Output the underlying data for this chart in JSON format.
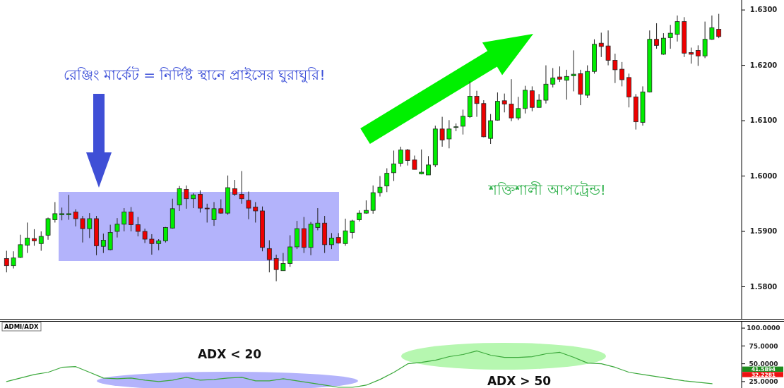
{
  "chart_data": [
    {
      "type": "candlestick",
      "categories": [
        null,
        null,
        null,
        null,
        null,
        null,
        null,
        null,
        null,
        null,
        null,
        null,
        null,
        null,
        null,
        null,
        null,
        null,
        null,
        null,
        null,
        null,
        null,
        null,
        null,
        null,
        null,
        null,
        null,
        null,
        null,
        null,
        null,
        null,
        null,
        null,
        null,
        null,
        null,
        null,
        null,
        null,
        null,
        null,
        null,
        null,
        null,
        null,
        null,
        null,
        null,
        null,
        null,
        null,
        null,
        null,
        null,
        null,
        null,
        null,
        null,
        null,
        null,
        null,
        null,
        null,
        null,
        null,
        null,
        null,
        null,
        null,
        null,
        null,
        null,
        null,
        null,
        null,
        null,
        null,
        null,
        null,
        null,
        null,
        null,
        null,
        null,
        null,
        null,
        null,
        null,
        null,
        null,
        null,
        null,
        null,
        null,
        null,
        null,
        null,
        null,
        null,
        null,
        null
      ],
      "ohlc": [
        [
          1.5851,
          1.5865,
          1.5826,
          1.5838
        ],
        [
          1.5838,
          1.5864,
          1.5833,
          1.5852
        ],
        [
          1.5853,
          1.5894,
          1.5852,
          1.5876
        ],
        [
          1.5875,
          1.5916,
          1.5861,
          1.5888
        ],
        [
          1.5887,
          1.5904,
          1.5874,
          1.5883
        ],
        [
          1.5878,
          1.59,
          1.5865,
          1.5891
        ],
        [
          1.5893,
          1.5925,
          1.5885,
          1.5923
        ],
        [
          1.5921,
          1.5953,
          1.5916,
          1.5932
        ],
        [
          1.593,
          1.5943,
          1.592,
          1.5932
        ],
        [
          1.593,
          1.5966,
          1.5921,
          1.5932
        ],
        [
          1.5935,
          1.594,
          1.5909,
          1.5923
        ],
        [
          1.5923,
          1.5928,
          1.588,
          1.5905
        ],
        [
          1.5905,
          1.5933,
          1.5888,
          1.5923
        ],
        [
          1.5923,
          1.5928,
          1.5857,
          1.5874
        ],
        [
          1.5873,
          1.5896,
          1.5861,
          1.5884
        ],
        [
          1.5867,
          1.5912,
          1.5866,
          1.5898
        ],
        [
          1.59,
          1.5924,
          1.5889,
          1.5913
        ],
        [
          1.5913,
          1.5942,
          1.59,
          1.5935
        ],
        [
          1.5935,
          1.5944,
          1.59,
          1.5912
        ],
        [
          1.5912,
          1.5926,
          1.5891,
          1.59
        ],
        [
          1.59,
          1.5905,
          1.5879,
          1.5886
        ],
        [
          1.5886,
          1.5895,
          1.5858,
          1.5878
        ],
        [
          1.5878,
          1.5886,
          1.5866,
          1.5883
        ],
        [
          1.5883,
          1.5908,
          1.588,
          1.5907
        ],
        [
          1.5906,
          1.5959,
          1.5905,
          1.5941
        ],
        [
          1.5948,
          1.5982,
          1.5937,
          1.5977
        ],
        [
          1.5976,
          1.5983,
          1.5941,
          1.5959
        ],
        [
          1.5959,
          1.5969,
          1.5942,
          1.5966
        ],
        [
          1.5967,
          1.5974,
          1.5934,
          1.5942
        ],
        [
          1.5942,
          1.595,
          1.5916,
          1.5941
        ],
        [
          1.5921,
          1.5953,
          1.591,
          1.5941
        ],
        [
          1.5941,
          1.5958,
          1.5932,
          1.5933
        ],
        [
          1.5933,
          1.6001,
          1.593,
          1.5979
        ],
        [
          1.5977,
          1.5993,
          1.5964,
          1.5967
        ],
        [
          1.5967,
          1.6009,
          1.595,
          1.5959
        ],
        [
          1.5956,
          1.5972,
          1.5922,
          1.5942
        ],
        [
          1.5944,
          1.5953,
          1.5916,
          1.5937
        ],
        [
          1.5937,
          1.5945,
          1.5864,
          1.5871
        ],
        [
          1.5869,
          1.5884,
          1.5826,
          1.5849
        ],
        [
          1.5851,
          1.5858,
          1.581,
          1.5831
        ],
        [
          1.5829,
          1.5861,
          1.5829,
          1.5842
        ],
        [
          1.5842,
          1.5893,
          1.5836,
          1.5872
        ],
        [
          1.5872,
          1.5919,
          1.5868,
          1.5905
        ],
        [
          1.5905,
          1.5926,
          1.5861,
          1.5871
        ],
        [
          1.5871,
          1.5917,
          1.5857,
          1.5913
        ],
        [
          1.5907,
          1.5942,
          1.5902,
          1.5915
        ],
        [
          1.5915,
          1.5928,
          1.5861,
          1.5876
        ],
        [
          1.5876,
          1.5897,
          1.5868,
          1.5888
        ],
        [
          1.5889,
          1.5897,
          1.5878,
          1.5879
        ],
        [
          1.5878,
          1.5923,
          1.5874,
          1.5901
        ],
        [
          1.5898,
          1.5921,
          1.5887,
          1.5919
        ],
        [
          1.5921,
          1.5938,
          1.5918,
          1.5933
        ],
        [
          1.5933,
          1.5956,
          1.5932,
          1.5938
        ],
        [
          1.5938,
          1.5983,
          1.5932,
          1.597
        ],
        [
          1.597,
          1.6,
          1.5963,
          1.598
        ],
        [
          1.5982,
          1.6014,
          1.5971,
          1.6005
        ],
        [
          1.6006,
          1.6046,
          1.5991,
          1.6022
        ],
        [
          1.6023,
          1.6053,
          1.6017,
          1.6047
        ],
        [
          1.6047,
          1.6049,
          1.6019,
          1.6028
        ],
        [
          1.6029,
          1.6037,
          1.6012,
          1.6012
        ],
        [
          1.6004,
          1.6048,
          1.6003,
          1.6007
        ],
        [
          1.6002,
          1.6036,
          1.6002,
          1.602
        ],
        [
          1.602,
          1.6091,
          1.6016,
          1.6085
        ],
        [
          1.6085,
          1.6107,
          1.6053,
          1.6065
        ],
        [
          1.6067,
          1.6101,
          1.605,
          1.6085
        ],
        [
          1.6088,
          1.6095,
          1.6081,
          1.6089
        ],
        [
          1.609,
          1.612,
          1.6075,
          1.6108
        ],
        [
          1.6107,
          1.6171,
          1.6105,
          1.6144
        ],
        [
          1.6144,
          1.6154,
          1.6107,
          1.6131
        ],
        [
          1.6131,
          1.6137,
          1.607,
          1.6071
        ],
        [
          1.6068,
          1.6112,
          1.6058,
          1.61
        ],
        [
          1.6101,
          1.6151,
          1.61,
          1.6135
        ],
        [
          1.6136,
          1.6149,
          1.6115,
          1.613
        ],
        [
          1.613,
          1.6175,
          1.6099,
          1.6105
        ],
        [
          1.6105,
          1.6143,
          1.6101,
          1.6122
        ],
        [
          1.6122,
          1.6163,
          1.6113,
          1.6155
        ],
        [
          1.6154,
          1.6162,
          1.6117,
          1.6124
        ],
        [
          1.6124,
          1.6148,
          1.6124,
          1.6137
        ],
        [
          1.6137,
          1.62,
          1.6131,
          1.6166
        ],
        [
          1.6166,
          1.6195,
          1.616,
          1.6177
        ],
        [
          1.6179,
          1.6198,
          1.617,
          1.6175
        ],
        [
          1.6173,
          1.6192,
          1.6138,
          1.618
        ],
        [
          1.6181,
          1.6227,
          1.6153,
          1.6184
        ],
        [
          1.6185,
          1.6192,
          1.6128,
          1.6148
        ],
        [
          1.6146,
          1.62,
          1.6141,
          1.6189
        ],
        [
          1.6189,
          1.6247,
          1.6185,
          1.6238
        ],
        [
          1.624,
          1.6259,
          1.6215,
          1.6234
        ],
        [
          1.6235,
          1.6263,
          1.62,
          1.6209
        ],
        [
          1.6209,
          1.6221,
          1.6168,
          1.6192
        ],
        [
          1.6193,
          1.6206,
          1.6162,
          1.6174
        ],
        [
          1.6178,
          1.6185,
          1.6124,
          1.6143
        ],
        [
          1.6143,
          1.6148,
          1.6084,
          1.6098
        ],
        [
          1.6097,
          1.6162,
          1.6091,
          1.6152
        ],
        [
          1.6152,
          1.6263,
          1.6151,
          1.6247
        ],
        [
          1.6247,
          1.6276,
          1.623,
          1.6236
        ],
        [
          1.622,
          1.6258,
          1.6219,
          1.6249
        ],
        [
          1.625,
          1.6273,
          1.623,
          1.6258
        ],
        [
          1.6256,
          1.629,
          1.6243,
          1.6279
        ],
        [
          1.6279,
          1.6287,
          1.6215,
          1.6222
        ],
        [
          1.6223,
          1.6232,
          1.6203,
          1.622
        ],
        [
          1.6227,
          1.6236,
          1.6199,
          1.6217
        ],
        [
          1.6217,
          1.6279,
          1.6213,
          1.6247
        ],
        [
          1.6247,
          1.629,
          1.6246,
          1.6268
        ],
        [
          1.6265,
          1.6293,
          1.6249,
          1.6252
        ]
      ],
      "colors": [
        "#ee0000",
        "#00ee00",
        "#00ee00",
        "#00ee00",
        "#ee0000",
        "#00ee00",
        "#00ee00",
        "#00ee00",
        "#00ee00",
        "#00ee00",
        "#ee0000",
        "#ee0000",
        "#00ee00",
        "#ee0000",
        "#00ee00",
        "#00ee00",
        "#00ee00",
        "#00ee00",
        "#ee0000",
        "#ee0000",
        "#ee0000",
        "#ee0000",
        "#00ee00",
        "#00ee00",
        "#00ee00",
        "#00ee00",
        "#ee0000",
        "#00ee00",
        "#ee0000",
        "#ee0000",
        "#00ee00",
        "#ee0000",
        "#00ee00",
        "#ee0000",
        "#ee0000",
        "#ee0000",
        "#ee0000",
        "#ee0000",
        "#ee0000",
        "#ee0000",
        "#00ee00",
        "#00ee00",
        "#00ee00",
        "#ee0000",
        "#00ee00",
        "#00ee00",
        "#ee0000",
        "#00ee00",
        "#ee0000",
        "#00ee00",
        "#00ee00",
        "#00ee00",
        "#00ee00",
        "#00ee00",
        "#00ee00",
        "#00ee00",
        "#00ee00",
        "#00ee00",
        "#ee0000",
        "#ee0000",
        "#00ee00",
        "#00ee00",
        "#00ee00",
        "#ee0000",
        "#00ee00",
        "#00ee00",
        "#00ee00",
        "#00ee00",
        "#ee0000",
        "#ee0000",
        "#00ee00",
        "#00ee00",
        "#ee0000",
        "#ee0000",
        "#00ee00",
        "#00ee00",
        "#ee0000",
        "#00ee00",
        "#00ee00",
        "#00ee00",
        "#ee0000",
        "#00ee00",
        "#00ee00",
        "#ee0000",
        "#00ee00",
        "#00ee00",
        "#ee0000",
        "#ee0000",
        "#ee0000",
        "#ee0000",
        "#ee0000",
        "#ee0000",
        "#00ee00",
        "#00ee00",
        "#ee0000",
        "#00ee00",
        "#00ee00",
        "#00ee00",
        "#ee0000",
        "#ee0000",
        "#ee0000",
        "#00ee00",
        "#00ee00",
        "#ee0000"
      ],
      "ylim": [
        1.5742,
        1.6318
      ],
      "yticks": [
        {
          "value": 1.58,
          "label": "1.5800"
        },
        {
          "value": 1.59,
          "label": "1.5900"
        },
        {
          "value": 1.6,
          "label": "1.6000"
        },
        {
          "value": 1.61,
          "label": "1.6100"
        },
        {
          "value": 1.62,
          "label": "1.6200"
        },
        {
          "value": 1.63,
          "label": "1.6300"
        }
      ],
      "annotations": [
        "রেঞ্জিং মার্কেট = নির্দিষ্ট স্থানে প্রাইসের ঘুরাঘুরি!",
        "শক্তিশালী আপট্রেন্ড!"
      ]
    },
    {
      "type": "line",
      "title": "ADMI/ADX",
      "categories": [
        null,
        null,
        null,
        null,
        null,
        null,
        null,
        null,
        null,
        null,
        null,
        null,
        null,
        null,
        null,
        null,
        null,
        null,
        null,
        null,
        null,
        null,
        null,
        null,
        null,
        null,
        null,
        null,
        null,
        null,
        null,
        null,
        null,
        null,
        null,
        null,
        null,
        null,
        null,
        null,
        null,
        null,
        null,
        null,
        null,
        null,
        null,
        null,
        null,
        null,
        null,
        null
      ],
      "series": [
        {
          "color": "#3aa83a",
          "values": [
            25,
            30,
            35,
            38,
            45,
            46,
            38,
            30,
            29,
            30,
            27,
            25,
            27,
            31,
            27,
            28,
            30,
            31,
            26,
            26,
            29,
            26,
            23,
            20,
            17,
            17,
            20,
            28,
            38,
            50,
            52,
            55,
            60,
            63,
            68,
            62,
            59,
            59,
            60,
            64,
            66,
            59,
            51,
            50,
            45,
            38,
            35,
            32,
            29,
            26,
            24,
            22
          ]
        }
      ],
      "ylim": [
        16,
        110
      ],
      "yticks": [
        {
          "value": 25,
          "label": "25.0000"
        },
        {
          "value": 50,
          "label": "50.0000"
        },
        {
          "value": 75,
          "label": "75.0000"
        },
        {
          "value": 100,
          "label": "100.0000"
        }
      ],
      "annotations": [
        "ADX < 20",
        "ADX > 50",
        "41.5894",
        "32.2281"
      ]
    }
  ]
}
